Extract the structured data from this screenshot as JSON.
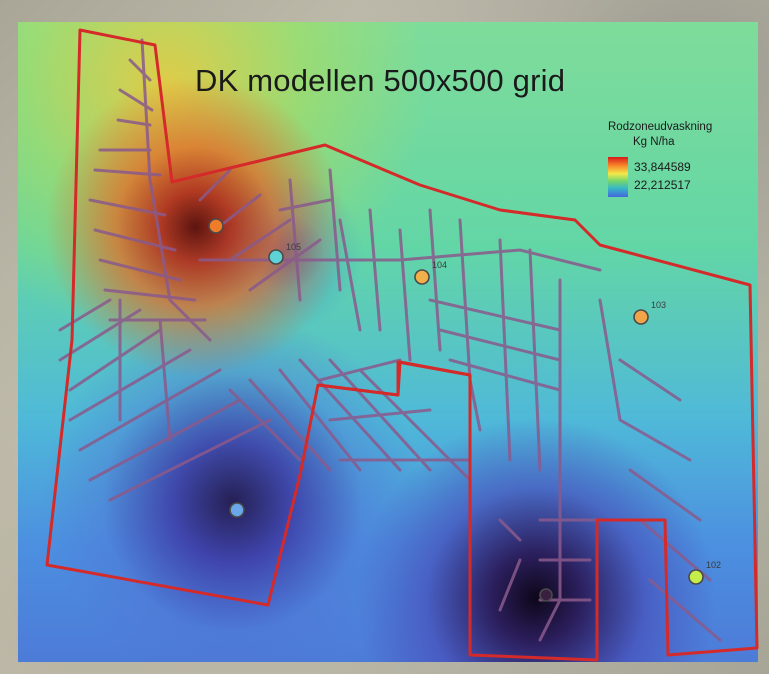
{
  "map": {
    "title": "DK modellen 500x500 grid"
  },
  "legend": {
    "title": "Rodzoneudvaskning",
    "unit": "Kg N/ha",
    "max_value": "33,844589",
    "min_value": "22,212517",
    "ramp_colors": [
      "#d7191c",
      "#f88a2a",
      "#f2e94a",
      "#74d66c",
      "#37b9c7",
      "#4466e0"
    ]
  },
  "boundary_color": "#d42a2a",
  "drain_color": "#8a5a8c",
  "sites": [
    {
      "id": "site-1",
      "label": "",
      "color": "#f07c2a"
    },
    {
      "id": "site-105",
      "label": "105",
      "color": "#5fd2d6"
    },
    {
      "id": "site-104",
      "label": "104",
      "color": "#f3b04a"
    },
    {
      "id": "site-103",
      "label": "103",
      "color": "#f2a548"
    },
    {
      "id": "site-4",
      "label": "",
      "color": "#6aa6ea"
    },
    {
      "id": "site-102",
      "label": "102",
      "color": "#c6ee4a"
    },
    {
      "id": "site-6",
      "label": "",
      "color": "#3a2040"
    }
  ]
}
